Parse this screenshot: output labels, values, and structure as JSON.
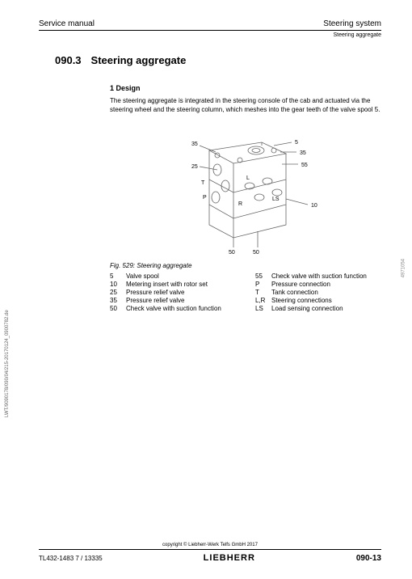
{
  "header": {
    "left": "Service manual",
    "right": "Steering system",
    "sub": "Steering aggregate"
  },
  "section": {
    "number": "090.3",
    "title": "Steering aggregate"
  },
  "design": {
    "heading": "1 Design",
    "paragraph": "The steering aggregate is integrated in the steering console of the cab and actuated via the steering wheel and the steering column, which meshes into the gear teeth of the valve spool 5."
  },
  "figure": {
    "caption": "Fig. 529: Steering aggregate",
    "side_code": "4971054",
    "callouts": {
      "c35a": "35",
      "c5": "5",
      "c35b": "35",
      "c55": "55",
      "c25": "25",
      "cT": "T",
      "cP": "P",
      "cLS": "LS",
      "cR": "R",
      "cL": "L",
      "c10": "10",
      "c50a": "50",
      "c50b": "50"
    }
  },
  "legend": {
    "left": [
      {
        "key": "5",
        "label": "Valve spool"
      },
      {
        "key": "10",
        "label": "Metering insert with rotor set"
      },
      {
        "key": "25",
        "label": "Pressure relief valve"
      },
      {
        "key": "35",
        "label": "Pressure relief valve"
      },
      {
        "key": "50",
        "label": "Check valve with suction function"
      }
    ],
    "right": [
      {
        "key": "55",
        "label": "Check valve with suction function"
      },
      {
        "key": "P",
        "label": "Pressure connection"
      },
      {
        "key": "T",
        "label": "Tank connection"
      },
      {
        "key": "L,R",
        "label": "Steering connections"
      },
      {
        "key": "LS",
        "label": "Load sensing connection"
      }
    ]
  },
  "footer": {
    "copyright": "copyright © Liebherr-Werk Telfs GmbH 2017",
    "doc_id": "TL432-1483 7 / 13335",
    "brand": "LIEBHERR",
    "page": "090-13"
  },
  "vertical_code": "LWT/9090178/090/04/215-20170124_0900782.de",
  "colors": {
    "text": "#000000",
    "line": "#666666",
    "bg": "#ffffff"
  }
}
